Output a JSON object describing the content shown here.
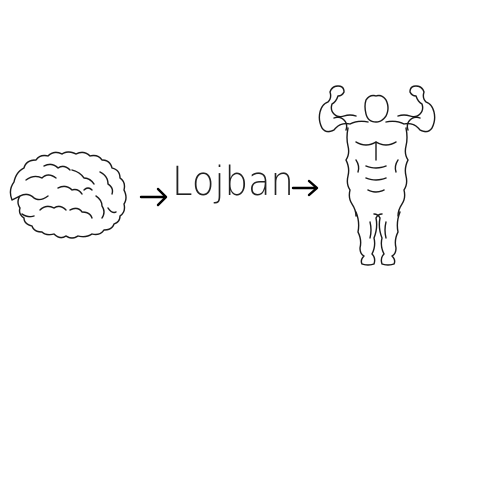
{
  "drawing": {
    "word": "Lojban",
    "icons": [
      "brain-icon",
      "arrow-right-icon",
      "muscleman-icon"
    ]
  }
}
